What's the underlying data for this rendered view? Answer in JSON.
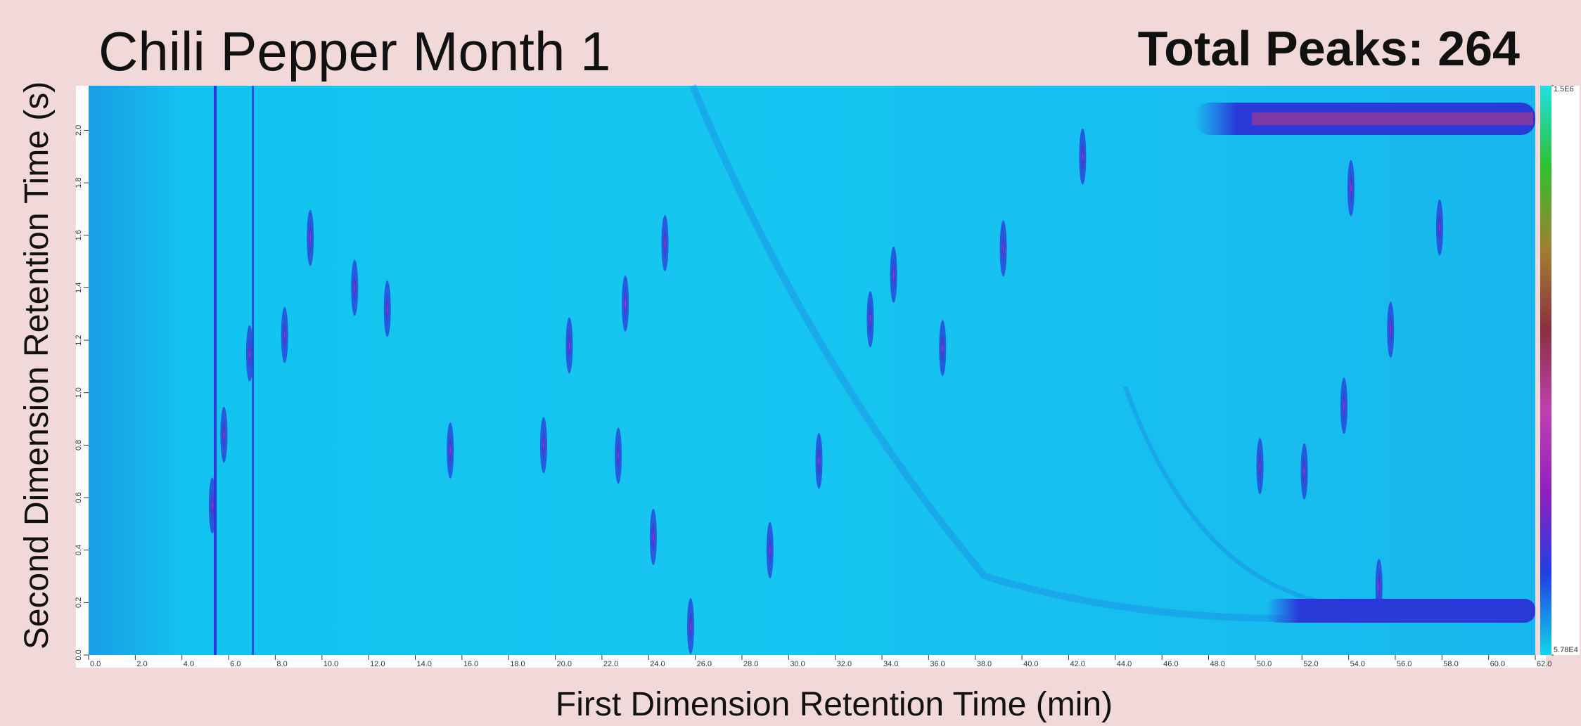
{
  "chart_data": {
    "type": "contour",
    "title": "Chili Pepper Month 1",
    "annotation": "Total Peaks: 264",
    "x_label": "First Dimension Retention Time (min)",
    "y_label": "Second Dimension Retention Time (s)",
    "xlim": [
      0,
      62
    ],
    "xticks": [
      {
        "value": 0,
        "label": "0.0"
      },
      {
        "value": 2,
        "label": "2.0"
      },
      {
        "value": 4,
        "label": "4.0"
      },
      {
        "value": 6,
        "label": "6.0"
      },
      {
        "value": 8,
        "label": "8.0"
      },
      {
        "value": 10,
        "label": "10.0"
      },
      {
        "value": 12,
        "label": "12.0"
      },
      {
        "value": 14,
        "label": "14.0"
      },
      {
        "value": 16,
        "label": "16.0"
      },
      {
        "value": 18,
        "label": "18.0"
      },
      {
        "value": 20,
        "label": "20.0"
      },
      {
        "value": 22,
        "label": "22.0"
      },
      {
        "value": 24,
        "label": "24.0"
      },
      {
        "value": 26,
        "label": "26.0"
      },
      {
        "value": 28,
        "label": "28.0"
      },
      {
        "value": 30,
        "label": "30.0"
      },
      {
        "value": 32,
        "label": "32.0"
      },
      {
        "value": 34,
        "label": "34.0"
      },
      {
        "value": 36,
        "label": "36.0"
      },
      {
        "value": 38,
        "label": "38.0"
      },
      {
        "value": 40,
        "label": "40.0"
      },
      {
        "value": 42,
        "label": "42.0"
      },
      {
        "value": 44,
        "label": "44.0"
      },
      {
        "value": 46,
        "label": "46.0"
      },
      {
        "value": 48,
        "label": "48.0"
      },
      {
        "value": 50,
        "label": "50.0"
      },
      {
        "value": 52,
        "label": "52.0"
      },
      {
        "value": 54,
        "label": "54.0"
      },
      {
        "value": 56,
        "label": "56.0"
      },
      {
        "value": 58,
        "label": "58.0"
      },
      {
        "value": 60,
        "label": "60.0"
      },
      {
        "value": 62,
        "label": "62.0"
      }
    ],
    "ylim": [
      0,
      2.17
    ],
    "yticks": [
      {
        "value": 0,
        "label": "0.0"
      },
      {
        "value": 0.2,
        "label": "0.2"
      },
      {
        "value": 0.4,
        "label": "0.4"
      },
      {
        "value": 0.6,
        "label": "0.6"
      },
      {
        "value": 0.8,
        "label": "0.8"
      },
      {
        "value": 1,
        "label": "1.0"
      },
      {
        "value": 1.2,
        "label": "1.2"
      },
      {
        "value": 1.4,
        "label": "1.4"
      },
      {
        "value": 1.6,
        "label": "1.6"
      },
      {
        "value": 1.8,
        "label": "1.8"
      },
      {
        "value": 2,
        "label": "2.0"
      }
    ],
    "clim": [
      57800,
      1500000
    ],
    "cticks": [
      {
        "value": 1500000,
        "label": "1.5E6"
      },
      {
        "value": 57800,
        "label": "5.78E4"
      }
    ],
    "colormap": [
      "#12d4ec",
      "#2040e0",
      "#9020c0",
      "#c040b0",
      "#8a3040",
      "#a08030",
      "#30c030",
      "#20e0e0"
    ],
    "peaks": {
      "color": "#2a3ad8",
      "x": [
        5.3,
        5.8,
        6.9,
        8.4,
        9.5,
        11.4,
        12.8,
        15.5,
        19.5,
        20.6,
        22.7,
        23.0,
        24.2,
        24.7,
        25.8,
        29.2,
        31.3,
        33.5,
        34.5,
        36.6,
        39.2,
        42.6,
        50.2,
        52.1,
        53.8,
        54.1,
        55.3,
        55.8,
        57.9
      ],
      "y": [
        0.57,
        0.84,
        1.15,
        1.22,
        1.59,
        1.4,
        1.32,
        0.78,
        0.8,
        1.18,
        0.76,
        1.34,
        0.45,
        1.57,
        0.11,
        0.4,
        0.74,
        1.28,
        1.45,
        1.17,
        1.55,
        1.9,
        0.72,
        0.7,
        0.95,
        1.78,
        0.26,
        1.24,
        1.63
      ]
    }
  }
}
